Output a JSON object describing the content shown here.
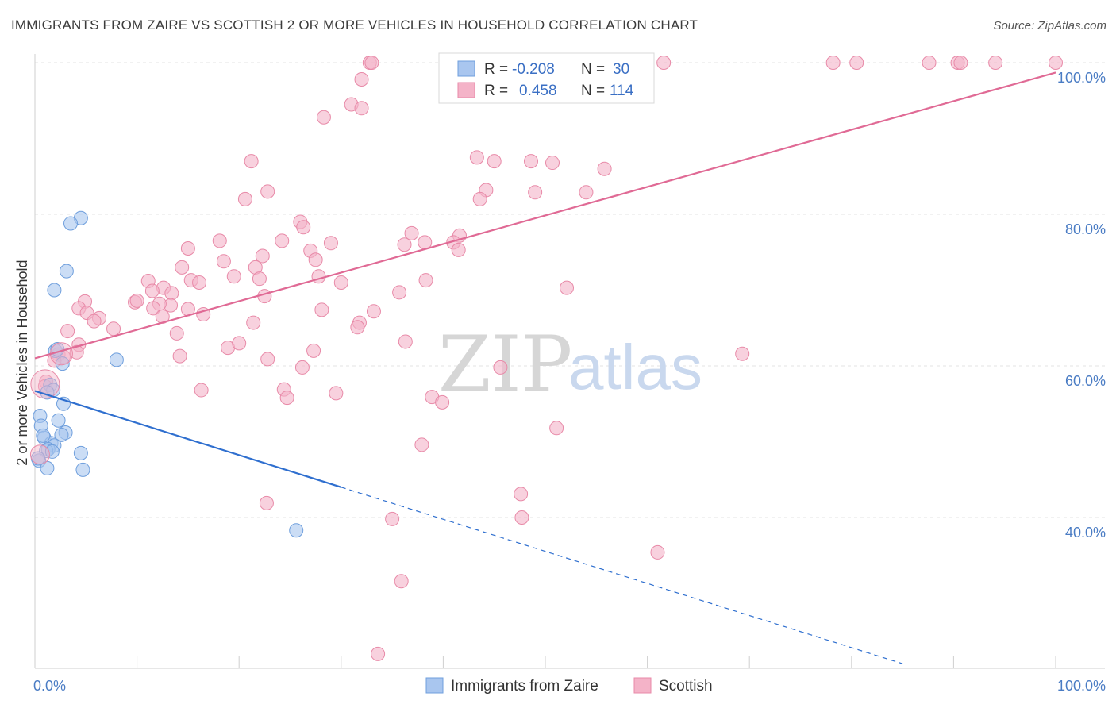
{
  "header": {
    "title": "IMMIGRANTS FROM ZAIRE VS SCOTTISH 2 OR MORE VEHICLES IN HOUSEHOLD CORRELATION CHART",
    "source": "Source: ZipAtlas.com"
  },
  "watermark": {
    "zip": "ZIP",
    "atlas": "atlas"
  },
  "legend": {
    "rows": [
      {
        "r_label": "R =",
        "r_value": "-0.208",
        "n_label": "N =",
        "n_value": "30",
        "color": "#a9c6ef"
      },
      {
        "r_label": "R =",
        "r_value": "0.458",
        "n_label": "N =",
        "n_value": "114",
        "color": "#f4b3c8"
      }
    ]
  },
  "bottom_legend": [
    {
      "label": "Immigrants from Zaire",
      "color": "#a9c6ef"
    },
    {
      "label": "Scottish",
      "color": "#f4b3c8"
    }
  ],
  "chart_data": {
    "type": "scatter",
    "title": "IMMIGRANTS FROM ZAIRE VS SCOTTISH 2 OR MORE VEHICLES IN HOUSEHOLD CORRELATION CHART",
    "xlabel": "",
    "ylabel": "2 or more Vehicles in Household",
    "xlim": [
      0,
      100
    ],
    "ylim": [
      20,
      102
    ],
    "x_ticks": [
      {
        "value": 0,
        "label": "0.0%"
      },
      {
        "value": 100,
        "label": "100.0%"
      }
    ],
    "y_ticks": [
      {
        "value": 40,
        "label": "40.0%"
      },
      {
        "value": 60,
        "label": "60.0%"
      },
      {
        "value": 80,
        "label": "80.0%"
      },
      {
        "value": 100,
        "label": "100.0%"
      }
    ],
    "grid": true,
    "legend_position": "top-center",
    "series": [
      {
        "name": "Immigrants from Zaire",
        "color": "#a9c6ef",
        "stroke": "#6f9fdd",
        "trend": {
          "x": [
            0,
            30
          ],
          "y": [
            56.7,
            44.0
          ],
          "color": "#2f6fcf",
          "dashed_extension_to_x": 85
        },
        "points": [
          [
            4.5,
            79.5
          ],
          [
            3.5,
            78.8
          ],
          [
            3.1,
            72.5
          ],
          [
            1.9,
            70.0
          ],
          [
            2.0,
            62.0
          ],
          [
            2.2,
            62.2
          ],
          [
            8.0,
            60.8
          ],
          [
            2.7,
            60.3
          ],
          [
            1.5,
            57.5
          ],
          [
            1.8,
            56.8
          ],
          [
            1.2,
            56.5
          ],
          [
            2.8,
            55.0
          ],
          [
            0.5,
            53.4
          ],
          [
            2.3,
            52.8
          ],
          [
            0.6,
            52.1
          ],
          [
            3.0,
            51.2
          ],
          [
            2.6,
            50.9
          ],
          [
            0.9,
            50.5
          ],
          [
            1.6,
            49.8
          ],
          [
            1.9,
            49.5
          ],
          [
            1.3,
            49.0
          ],
          [
            1.1,
            48.8
          ],
          [
            4.5,
            48.5
          ],
          [
            0.4,
            47.5
          ],
          [
            1.2,
            46.5
          ],
          [
            4.7,
            46.3
          ],
          [
            0.3,
            47.8
          ],
          [
            0.8,
            50.8
          ],
          [
            25.6,
            38.3
          ],
          [
            1.7,
            48.7
          ]
        ]
      },
      {
        "name": "Scottish",
        "color": "#f4b3c8",
        "stroke": "#e88aa8",
        "trend": {
          "x": [
            0,
            100
          ],
          "y": [
            61.0,
            98.7
          ],
          "color": "#e06a95"
        },
        "points": [
          [
            32.8,
            100
          ],
          [
            33.0,
            100
          ],
          [
            52.2,
            100
          ],
          [
            56.4,
            100
          ],
          [
            58.4,
            100
          ],
          [
            78.2,
            100
          ],
          [
            80.5,
            100
          ],
          [
            87.6,
            100
          ],
          [
            90.4,
            100
          ],
          [
            90.7,
            100
          ],
          [
            94.1,
            100
          ],
          [
            100.0,
            100
          ],
          [
            56.8,
            100
          ],
          [
            56.6,
            100
          ],
          [
            61.6,
            100
          ],
          [
            32.0,
            97.8
          ],
          [
            31.0,
            94.5
          ],
          [
            28.3,
            92.8
          ],
          [
            32.0,
            94.0
          ],
          [
            47.5,
            96.0
          ],
          [
            43.3,
            87.5
          ],
          [
            45.0,
            87.0
          ],
          [
            48.6,
            87.0
          ],
          [
            21.2,
            87.0
          ],
          [
            50.7,
            86.8
          ],
          [
            55.8,
            86.0
          ],
          [
            22.8,
            83.0
          ],
          [
            44.2,
            83.2
          ],
          [
            49.0,
            82.9
          ],
          [
            54.0,
            82.9
          ],
          [
            20.6,
            82.0
          ],
          [
            43.6,
            82.0
          ],
          [
            26.0,
            79.0
          ],
          [
            26.3,
            78.3
          ],
          [
            36.9,
            77.5
          ],
          [
            41.6,
            77.2
          ],
          [
            18.1,
            76.5
          ],
          [
            24.2,
            76.5
          ],
          [
            29.0,
            76.2
          ],
          [
            36.2,
            76.0
          ],
          [
            38.2,
            76.3
          ],
          [
            41.0,
            76.3
          ],
          [
            41.5,
            75.3
          ],
          [
            15.0,
            75.5
          ],
          [
            27.0,
            75.2
          ],
          [
            22.3,
            74.5
          ],
          [
            27.5,
            74.0
          ],
          [
            18.5,
            73.8
          ],
          [
            21.6,
            73.0
          ],
          [
            14.4,
            73.0
          ],
          [
            19.5,
            71.8
          ],
          [
            22.0,
            71.5
          ],
          [
            27.8,
            71.8
          ],
          [
            38.3,
            71.3
          ],
          [
            30.0,
            71.0
          ],
          [
            15.3,
            71.3
          ],
          [
            11.1,
            71.2
          ],
          [
            12.6,
            70.3
          ],
          [
            16.1,
            71.0
          ],
          [
            35.7,
            69.7
          ],
          [
            52.1,
            70.3
          ],
          [
            13.4,
            69.6
          ],
          [
            11.5,
            69.9
          ],
          [
            22.5,
            69.2
          ],
          [
            9.8,
            68.4
          ],
          [
            13.3,
            68.0
          ],
          [
            4.9,
            68.5
          ],
          [
            10.0,
            68.6
          ],
          [
            12.2,
            68.2
          ],
          [
            4.3,
            67.6
          ],
          [
            11.6,
            67.6
          ],
          [
            15.0,
            67.5
          ],
          [
            28.1,
            67.4
          ],
          [
            33.2,
            67.2
          ],
          [
            5.1,
            67.0
          ],
          [
            6.3,
            66.3
          ],
          [
            12.5,
            66.5
          ],
          [
            16.5,
            66.8
          ],
          [
            5.8,
            65.9
          ],
          [
            21.4,
            65.7
          ],
          [
            31.8,
            65.7
          ],
          [
            31.6,
            65.1
          ],
          [
            13.9,
            64.3
          ],
          [
            3.2,
            64.6
          ],
          [
            7.7,
            64.9
          ],
          [
            18.9,
            62.4
          ],
          [
            20.0,
            63.0
          ],
          [
            4.3,
            62.8
          ],
          [
            27.3,
            62.0
          ],
          [
            36.3,
            63.2
          ],
          [
            4.1,
            61.8
          ],
          [
            2.3,
            61.5
          ],
          [
            2.8,
            61.2
          ],
          [
            1.9,
            60.7
          ],
          [
            14.2,
            61.3
          ],
          [
            22.8,
            60.9
          ],
          [
            69.3,
            61.6
          ],
          [
            26.2,
            59.8
          ],
          [
            45.6,
            59.8
          ],
          [
            1.1,
            57.9
          ],
          [
            1.0,
            57.3
          ],
          [
            16.3,
            56.8
          ],
          [
            24.4,
            56.9
          ],
          [
            29.5,
            56.4
          ],
          [
            24.7,
            55.8
          ],
          [
            38.9,
            55.9
          ],
          [
            39.9,
            55.2
          ],
          [
            51.1,
            51.8
          ],
          [
            37.9,
            49.6
          ],
          [
            22.7,
            41.9
          ],
          [
            47.6,
            43.1
          ],
          [
            47.7,
            40.0
          ],
          [
            35.0,
            39.8
          ],
          [
            61.0,
            35.4
          ],
          [
            35.9,
            31.6
          ],
          [
            33.6,
            22.0
          ]
        ]
      }
    ]
  }
}
